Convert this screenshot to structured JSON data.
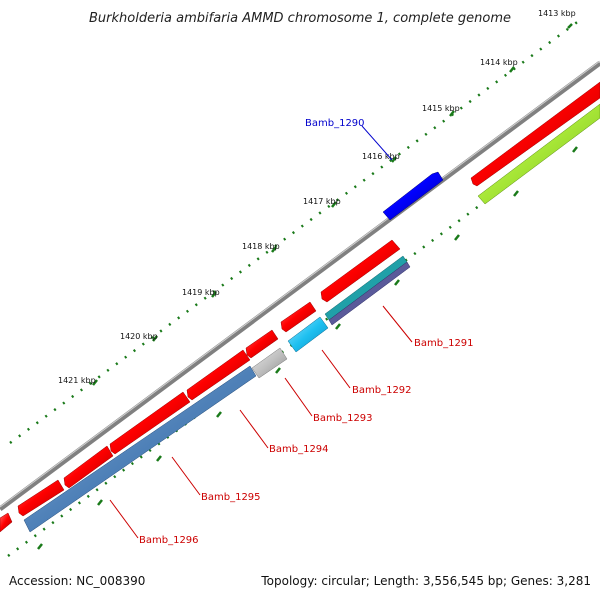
{
  "title": "Burkholderia ambifaria AMMD chromosome 1, complete genome",
  "kbp_labels": [
    "1413 kbp",
    "1414 kbp",
    "1415 kbp",
    "1416 kbp",
    "1417 kbp",
    "1418 kbp",
    "1419 kbp",
    "1420 kbp",
    "1421 kbp"
  ],
  "gene_labels": [
    "Bamb_1290",
    "Bamb_1291",
    "Bamb_1292",
    "Bamb_1293",
    "Bamb_1294",
    "Bamb_1295",
    "Bamb_1296"
  ],
  "footer": {
    "accession": "Accession: NC_008390",
    "topology": "Topology: circular; Length: 3,556,545 bp; Genes: 3,281"
  },
  "colors": {
    "backbone": "#808080",
    "forward_gene": "#ff0000",
    "reverse_gene": "#ff0000",
    "highlight_gene": "#0000ff",
    "label_forward": "#0000cc",
    "label_reverse": "#cc0000",
    "tick": "#1a7a1a"
  }
}
